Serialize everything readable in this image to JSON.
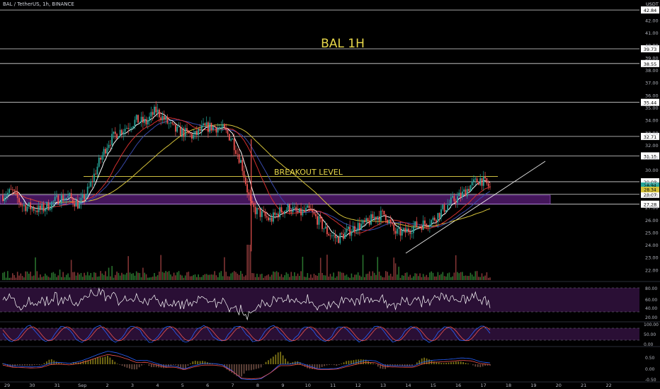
{
  "header": {
    "symbol_line": "BAL / TetherUS, 1h, BINANCE",
    "currency": "USDT"
  },
  "chart_data": {
    "type": "line",
    "subtype": "candlestick",
    "title": "BAL 1H",
    "annotations": {
      "breakout_label": "BREAKOUT LEVEL"
    },
    "price_axis": {
      "range": [
        21.2,
        43.3
      ],
      "ticks": [
        "42.00",
        "41.00",
        "40.00",
        "39.00",
        "38.00",
        "37.00",
        "36.00",
        "35.00",
        "34.00",
        "33.00",
        "32.00",
        "31.00",
        "30.00",
        "29.00",
        "28.00",
        "27.00",
        "26.00",
        "25.00",
        "24.00",
        "23.00",
        "22.00"
      ],
      "tick_values": [
        42,
        41,
        40,
        39,
        38,
        37,
        36,
        35,
        34,
        33,
        32,
        31,
        30,
        29,
        28,
        27,
        26,
        25,
        24,
        23,
        22
      ]
    },
    "levels": [
      {
        "value": 42.84,
        "label": "42.84"
      },
      {
        "value": 39.73,
        "label": "39.73"
      },
      {
        "value": 38.55,
        "label": "38.55"
      },
      {
        "value": 35.44,
        "label": "35.44"
      },
      {
        "value": 32.71,
        "label": "32.71"
      },
      {
        "value": 31.15,
        "label": "31.15"
      },
      {
        "value": 29.08,
        "label": "29.08"
      },
      {
        "value": 28.07,
        "label": "28.07"
      },
      {
        "value": 27.28,
        "label": "27.28"
      }
    ],
    "current_price_labels": [
      "28.94",
      "28.34"
    ],
    "breakout_level": 29.5,
    "zone": [
      27.3,
      28.0
    ],
    "time_axis": {
      "labels": [
        "29",
        "30",
        "31",
        "Sep",
        "2",
        "3",
        "4",
        "5",
        "6",
        "7",
        "8",
        "9",
        "10",
        "11",
        "12",
        "13",
        "14",
        "15",
        "16",
        "17",
        "18",
        "19",
        "20",
        "21",
        "22"
      ]
    },
    "close_path": [
      [
        0,
        28.0
      ],
      [
        2,
        28.3
      ],
      [
        4,
        27.2
      ],
      [
        6,
        27.0
      ],
      [
        8,
        26.8
      ],
      [
        10,
        27.3
      ],
      [
        12,
        27.8
      ],
      [
        14,
        27.8
      ],
      [
        16,
        27.2
      ],
      [
        18,
        28.5
      ],
      [
        20,
        30.5
      ],
      [
        22,
        32.2
      ],
      [
        24,
        33.0
      ],
      [
        26,
        33.5
      ],
      [
        28,
        34.0
      ],
      [
        30,
        33.8
      ],
      [
        32,
        34.8
      ],
      [
        34,
        34.0
      ],
      [
        36,
        33.2
      ],
      [
        38,
        33.0
      ],
      [
        40,
        32.7
      ],
      [
        42,
        33.4
      ],
      [
        44,
        33.5
      ],
      [
        46,
        33.3
      ],
      [
        48,
        32.5
      ],
      [
        50,
        30.5
      ],
      [
        52,
        27.0
      ],
      [
        54,
        26.5
      ],
      [
        56,
        26.0
      ],
      [
        58,
        26.7
      ],
      [
        60,
        27.0
      ],
      [
        62,
        26.5
      ],
      [
        64,
        26.8
      ],
      [
        66,
        26.0
      ],
      [
        68,
        25.0
      ],
      [
        70,
        24.5
      ],
      [
        72,
        25.0
      ],
      [
        74,
        25.5
      ],
      [
        76,
        25.7
      ],
      [
        78,
        26.3
      ],
      [
        80,
        26.5
      ],
      [
        82,
        25.0
      ],
      [
        84,
        25.0
      ],
      [
        86,
        25.5
      ],
      [
        88,
        25.7
      ],
      [
        90,
        26.0
      ],
      [
        92,
        26.8
      ],
      [
        94,
        27.5
      ],
      [
        96,
        28.0
      ],
      [
        98,
        28.8
      ],
      [
        100,
        29.3
      ],
      [
        102,
        28.6
      ]
    ],
    "indicators": [
      "RSI",
      "Stochastic RSI",
      "MACD"
    ],
    "rsi_axis": [
      "80.00",
      "60.00",
      "40.00",
      "20.00"
    ],
    "stoch_axis": [
      "100.00",
      "50.00",
      "0.00"
    ],
    "macd_axis": [
      "0.50",
      "0.00",
      "-0.50"
    ],
    "grid": false,
    "colors": {
      "background": "#000000",
      "candle_up": "#26a69a",
      "candle_down": "#ef5350",
      "title": "#e8d84a",
      "breakout": "#e8d84a",
      "zone": "#5b1d7a",
      "ma_white": "#ffffff",
      "ma_red": "#d32f2f",
      "ma_blue": "#3949ab",
      "ma_yellow": "#d4c13a",
      "rsi_fill": "#2a0f35",
      "stoch_blue": "#2962ff",
      "stoch_red": "#ef5350"
    }
  }
}
